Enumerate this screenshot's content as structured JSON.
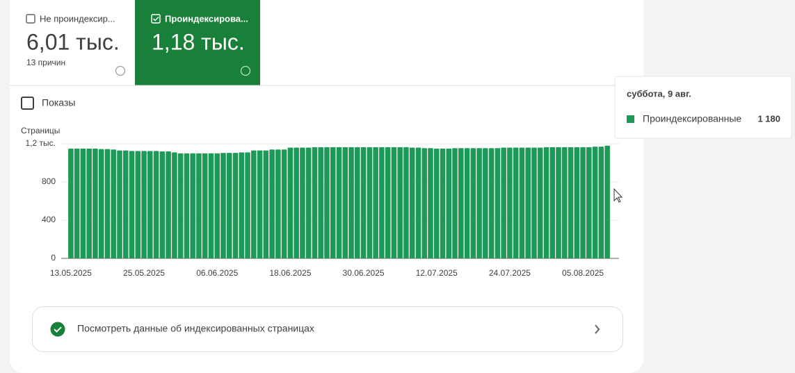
{
  "cards": [
    {
      "label": "Не проиндексир...",
      "value": "6,01 тыс.",
      "note": "13 причин"
    },
    {
      "label": "Проиндексирова...",
      "value": "1,18 тыс."
    }
  ],
  "toggle": "Показы",
  "chart_data": {
    "type": "bar",
    "y_label": "Страницы",
    "categories": [
      "13.05.2025",
      null,
      null,
      null,
      null,
      null,
      null,
      null,
      null,
      null,
      null,
      null,
      "25.05.2025",
      null,
      null,
      null,
      null,
      null,
      null,
      null,
      null,
      null,
      null,
      null,
      "06.06.2025",
      null,
      null,
      null,
      null,
      null,
      null,
      null,
      null,
      null,
      null,
      null,
      "18.06.2025",
      null,
      null,
      null,
      null,
      null,
      null,
      null,
      null,
      null,
      null,
      null,
      "30.06.2025",
      null,
      null,
      null,
      null,
      null,
      null,
      null,
      null,
      null,
      null,
      null,
      "12.07.2025",
      null,
      null,
      null,
      null,
      null,
      null,
      null,
      null,
      null,
      null,
      null,
      "24.07.2025",
      null,
      null,
      null,
      null,
      null,
      null,
      null,
      null,
      null,
      null,
      null,
      "05.08.2025",
      null,
      null,
      null,
      null
    ],
    "series": [
      {
        "name": "Проиндексированные",
        "color": "#1e9a58",
        "values": [
          1150,
          1150,
          1150,
          1150,
          1150,
          1145,
          1145,
          1140,
          1130,
          1130,
          1125,
          1125,
          1125,
          1125,
          1125,
          1120,
          1120,
          1110,
          1100,
          1100,
          1100,
          1100,
          1100,
          1100,
          1100,
          1105,
          1105,
          1105,
          1110,
          1110,
          1130,
          1130,
          1130,
          1140,
          1140,
          1140,
          1160,
          1160,
          1160,
          1160,
          1165,
          1165,
          1165,
          1165,
          1165,
          1165,
          1165,
          1165,
          1165,
          1165,
          1165,
          1165,
          1165,
          1165,
          1165,
          1165,
          1160,
          1160,
          1155,
          1155,
          1150,
          1150,
          1150,
          1155,
          1155,
          1155,
          1155,
          1155,
          1155,
          1155,
          1155,
          1160,
          1160,
          1160,
          1160,
          1160,
          1160,
          1160,
          1165,
          1165,
          1165,
          1165,
          1165,
          1165,
          1165,
          1165,
          1170,
          1170,
          1180
        ]
      }
    ],
    "ylim": [
      0,
      1200
    ],
    "yticks": [
      0,
      400,
      800,
      {
        "value": 1200,
        "label": "1,2 тыс."
      }
    ],
    "grid": true
  },
  "tooltip": {
    "title": "суббота, 9 авг.",
    "series": "Проиндексированные",
    "value": "1 180"
  },
  "link": "Посмотреть данные об индексированных страницах"
}
